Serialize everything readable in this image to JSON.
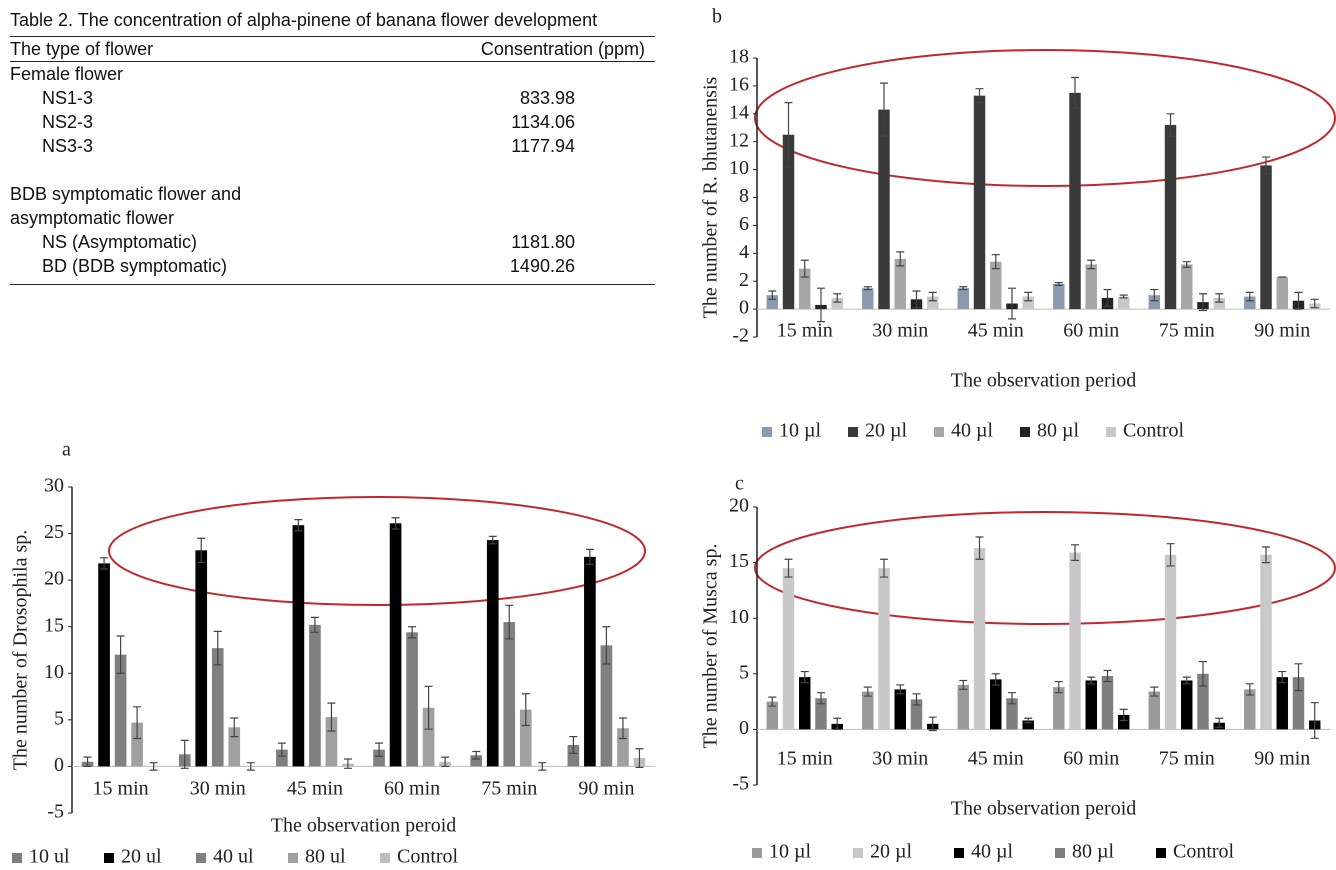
{
  "table": {
    "caption": "Table 2. The concentration of alpha-pinene of banana flower development",
    "header": [
      "The type of flower",
      "Consentration (ppm)"
    ],
    "groups": [
      {
        "name": "Female flower",
        "rows": [
          [
            "NS1-3",
            "833.98"
          ],
          [
            "NS2-3",
            "1134.06"
          ],
          [
            "NS3-3",
            "1177.94"
          ]
        ]
      },
      {
        "name": "BDB symptomatic flower and asymptomatic flower",
        "rows": [
          [
            "NS (Asymptomatic)",
            "1181.80"
          ],
          [
            "BD (BDB symptomatic)",
            "1490.26"
          ]
        ]
      }
    ]
  },
  "chart_data": [
    {
      "type": "bar",
      "label": "a",
      "ylabel": "The number of Drosophila sp.",
      "xlabel": "The observation peroid",
      "categories": [
        "15 min",
        "30 min",
        "45 min",
        "60 min",
        "75 min",
        "90 min"
      ],
      "ylim": [
        -5,
        30
      ],
      "yticks": [
        -5,
        0,
        5,
        10,
        15,
        20,
        25,
        30
      ],
      "series": [
        {
          "name": "10 ul",
          "color": "#7f7f7f",
          "values": [
            0.5,
            1.3,
            1.8,
            1.8,
            1.2,
            2.3
          ],
          "errors": [
            0.5,
            1.5,
            0.7,
            0.7,
            0.4,
            0.9
          ]
        },
        {
          "name": "20 ul",
          "color": "#000000",
          "values": [
            21.8,
            23.2,
            25.9,
            26.1,
            24.3,
            22.5
          ],
          "errors": [
            0.6,
            1.3,
            0.6,
            0.6,
            0.4,
            0.8
          ]
        },
        {
          "name": "40 ul",
          "color": "#808080",
          "values": [
            12,
            12.7,
            15.2,
            14.4,
            15.5,
            13
          ],
          "errors": [
            2,
            1.8,
            0.8,
            0.6,
            1.8,
            2
          ]
        },
        {
          "name": "80 ul",
          "color": "#a0a0a0",
          "values": [
            4.7,
            4.2,
            5.3,
            6.3,
            6.1,
            4.1
          ],
          "errors": [
            1.7,
            1,
            1.5,
            2.3,
            1.7,
            1.1
          ]
        },
        {
          "name": "Control",
          "color": "#bdbdbd",
          "values": [
            0,
            0,
            0.3,
            0.5,
            0,
            0.9
          ],
          "errors": [
            0.4,
            0.4,
            0.5,
            0.5,
            0.4,
            1
          ]
        }
      ]
    },
    {
      "type": "bar",
      "label": "b",
      "ylabel": "The number of R. bhutanensis",
      "xlabel": "The observation period",
      "categories": [
        "15 min",
        "30 min",
        "45 min",
        "60 min",
        "75 min",
        "90 min"
      ],
      "ylim": [
        -2,
        18
      ],
      "yticks": [
        -2,
        0,
        2,
        4,
        6,
        8,
        10,
        12,
        14,
        16,
        18
      ],
      "series": [
        {
          "name": "10 µl",
          "color": "#8a9bb0",
          "values": [
            1,
            1.5,
            1.5,
            1.8,
            1,
            0.9
          ],
          "errors": [
            0.3,
            0.1,
            0.1,
            0.1,
            0.4,
            0.3
          ]
        },
        {
          "name": "20 µl",
          "color": "#3a3a3a",
          "values": [
            12.5,
            14.3,
            15.3,
            15.5,
            13.2,
            10.3
          ],
          "errors": [
            2.3,
            1.9,
            0.5,
            1.1,
            0.8,
            0.6
          ]
        },
        {
          "name": "40 µl",
          "color": "#a6a6a6",
          "values": [
            2.9,
            3.6,
            3.4,
            3.2,
            3.2,
            2.3
          ],
          "errors": [
            0.6,
            0.5,
            0.5,
            0.3,
            0.2,
            0
          ]
        },
        {
          "name": "80 µl",
          "color": "#222222",
          "values": [
            0.3,
            0.7,
            0.4,
            0.8,
            0.5,
            0.6
          ],
          "errors": [
            1.2,
            0.6,
            1.1,
            0.6,
            0.6,
            0.6
          ]
        },
        {
          "name": "Control",
          "color": "#c8c8c8",
          "values": [
            0.8,
            0.9,
            0.9,
            0.9,
            0.8,
            0.4
          ],
          "errors": [
            0.3,
            0.3,
            0.3,
            0.1,
            0.3,
            0.3
          ]
        }
      ]
    },
    {
      "type": "bar",
      "label": "c",
      "ylabel": "The number of Musca sp.",
      "xlabel": "The observation peroid",
      "categories": [
        "15 min",
        "30 min",
        "45 min",
        "60 min",
        "75 min",
        "90 min"
      ],
      "ylim": [
        -5,
        20
      ],
      "yticks": [
        -5,
        0,
        5,
        10,
        15,
        20
      ],
      "series": [
        {
          "name": "10 µl",
          "color": "#9a9a9a",
          "values": [
            2.5,
            3.4,
            4,
            3.8,
            3.4,
            3.6
          ],
          "errors": [
            0.4,
            0.4,
            0.4,
            0.5,
            0.4,
            0.5
          ]
        },
        {
          "name": "20 µl",
          "color": "#c8c8c8",
          "values": [
            14.5,
            14.5,
            16.3,
            15.9,
            15.7,
            15.7
          ],
          "errors": [
            0.8,
            0.8,
            1,
            0.7,
            1,
            0.7
          ]
        },
        {
          "name": "40 µl",
          "color": "#000000",
          "values": [
            4.7,
            3.6,
            4.5,
            4.4,
            4.4,
            4.7
          ],
          "errors": [
            0.5,
            0.4,
            0.5,
            0.3,
            0.3,
            0.5
          ]
        },
        {
          "name": "80 µl",
          "color": "#7f7f7f",
          "values": [
            2.8,
            2.7,
            2.8,
            4.8,
            5,
            4.7
          ],
          "errors": [
            0.5,
            0.5,
            0.5,
            0.5,
            1.1,
            1.2
          ]
        },
        {
          "name": "Control",
          "color": "#000000",
          "values": [
            0.5,
            0.5,
            0.8,
            1.3,
            0.6,
            0.8
          ],
          "errors": [
            0.5,
            0.6,
            0.2,
            0.5,
            0.4,
            1.6
          ]
        }
      ]
    }
  ]
}
